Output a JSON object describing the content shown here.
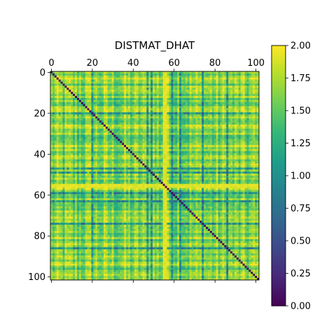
{
  "chart_data": {
    "type": "heatmap",
    "title": "DISTMAT_DHAT",
    "xlabel": "",
    "ylabel": "",
    "n": 102,
    "note": "Symmetric distance matrix: 0 on the diagonal, off-diagonal values mostly 1.0-2.0 with some low (~0.4-0.7) blocks.",
    "x_ticks": [
      0,
      20,
      40,
      60,
      80,
      100
    ],
    "y_ticks": [
      0,
      20,
      40,
      60,
      80,
      100
    ],
    "x_axis_position": "top",
    "colorbar": {
      "min": 0.0,
      "max": 2.0,
      "ticks": [
        "0.00",
        "0.25",
        "0.50",
        "0.75",
        "1.00",
        "1.25",
        "1.50",
        "1.75",
        "2.00"
      ],
      "colormap": "viridis"
    },
    "colormap_stops": [
      "#440154",
      "#482878",
      "#3e4989",
      "#31688e",
      "#26828e",
      "#1f9e89",
      "#35b779",
      "#6ece58",
      "#b5de2b",
      "#fde725"
    ]
  }
}
